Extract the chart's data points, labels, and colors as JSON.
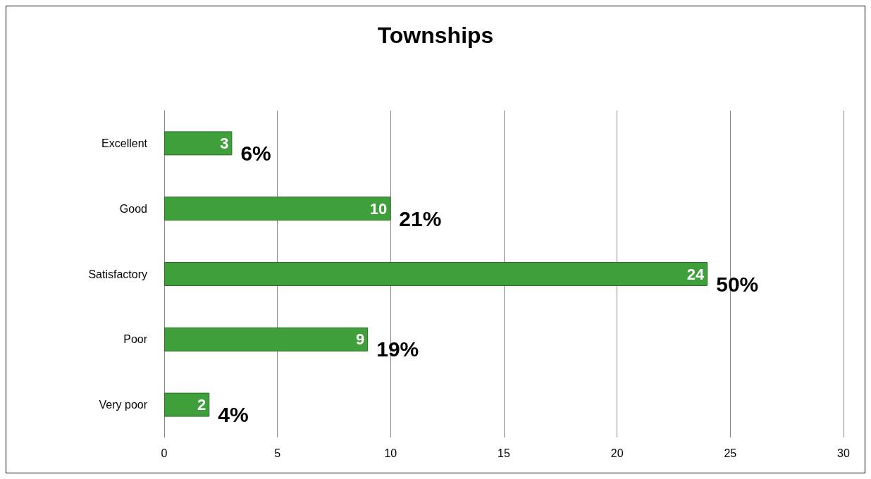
{
  "chart_data": {
    "type": "bar",
    "title": "Townships",
    "orientation": "horizontal",
    "categories": [
      "Excellent",
      "Good",
      "Satisfactory",
      "Poor",
      "Very poor"
    ],
    "values": [
      3,
      10,
      24,
      9,
      2
    ],
    "annotations": [
      {
        "text": "6%",
        "x": 3,
        "y": "Excellent"
      },
      {
        "text": "21%",
        "x": 10,
        "y": "Good"
      },
      {
        "text": "50%",
        "x": 24,
        "y": "Satisfactory"
      },
      {
        "text": "19%",
        "x": 9,
        "y": "Poor"
      },
      {
        "text": "4%",
        "x": 2,
        "y": "Very poor"
      }
    ],
    "data_labels": true,
    "color": "#3f9f3a",
    "xlim": [
      0,
      30
    ],
    "xticks": [
      0,
      5,
      10,
      15,
      20,
      25,
      30
    ],
    "grid": "x"
  }
}
